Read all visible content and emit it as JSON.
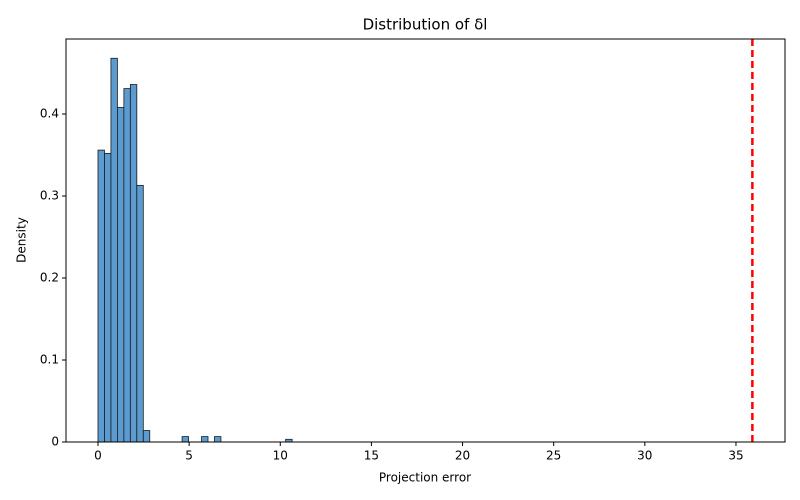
{
  "chart_data": {
    "type": "histogram",
    "title": "Distribution of δl",
    "x_label": "Projection error",
    "y_label": "Density",
    "bins": [
      0,
      0.355,
      0.71,
      1.065,
      1.42,
      1.775,
      2.13,
      2.485,
      2.84,
      3.195,
      3.55,
      3.905,
      4.26,
      4.615,
      4.97,
      5.325,
      5.68,
      6.035,
      6.39,
      6.745,
      7.1,
      7.455,
      7.81,
      8.165,
      8.52,
      8.875,
      9.23,
      9.585,
      9.94,
      10.295,
      10.65
    ],
    "values": [
      0.356,
      0.352,
      0.468,
      0.408,
      0.431,
      0.436,
      0.313,
      0.014,
      0,
      0,
      0,
      0,
      0,
      0.0066,
      0,
      0,
      0.0066,
      0,
      0.0066,
      0,
      0,
      0,
      0,
      0,
      0,
      0,
      0,
      0,
      0,
      0.0033
    ],
    "color": "#5b9bd0",
    "edgecolor": "#1a1a1a",
    "vline": {
      "value": 35.9,
      "color": "#ff0000",
      "dashed": true
    },
    "xlim": [
      -1.755,
      37.69
    ],
    "xticks": [
      0,
      5,
      10,
      15,
      20,
      25,
      30,
      35
    ],
    "ylim": [
      0,
      0.4915
    ],
    "yticks": [
      0,
      0.1,
      0.2,
      0.3,
      0.4
    ]
  }
}
